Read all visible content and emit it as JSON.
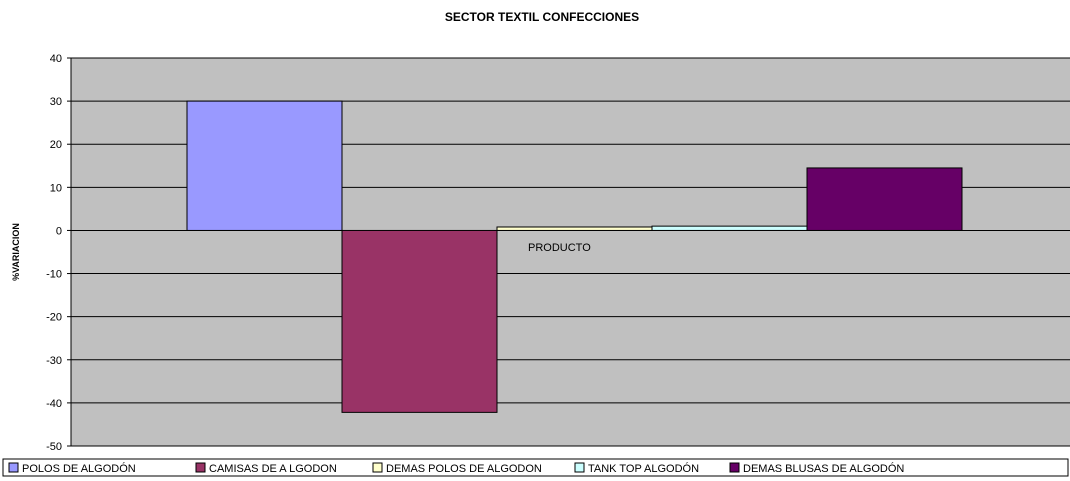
{
  "chart_data": {
    "type": "bar",
    "title": "SECTOR TEXTIL CONFECCIONES",
    "xlabel": "PRODUCTO",
    "ylabel": "%VARIACION",
    "ylim": [
      -50,
      40
    ],
    "yticks": [
      40,
      30,
      20,
      10,
      0,
      -10,
      -20,
      -30,
      -40,
      -50
    ],
    "grid": true,
    "legend_position": "bottom",
    "plot_background": "#c0c0c0",
    "series": [
      {
        "name": "POLOS DE ALGODÓN",
        "value": 30,
        "color": "#9999ff"
      },
      {
        "name": "CAMISAS DE A LGODON",
        "value": -42.2,
        "color": "#993366"
      },
      {
        "name": "DEMAS  POLOS DE  ALGODON",
        "value": 0.8,
        "color": "#ffffcc"
      },
      {
        "name": "TANK TOP ALGODÓN",
        "value": 1,
        "color": "#ccffff"
      },
      {
        "name": "DEMAS  BLUSAS DE  ALGODÓN",
        "value": 14.5,
        "color": "#660066"
      }
    ]
  }
}
